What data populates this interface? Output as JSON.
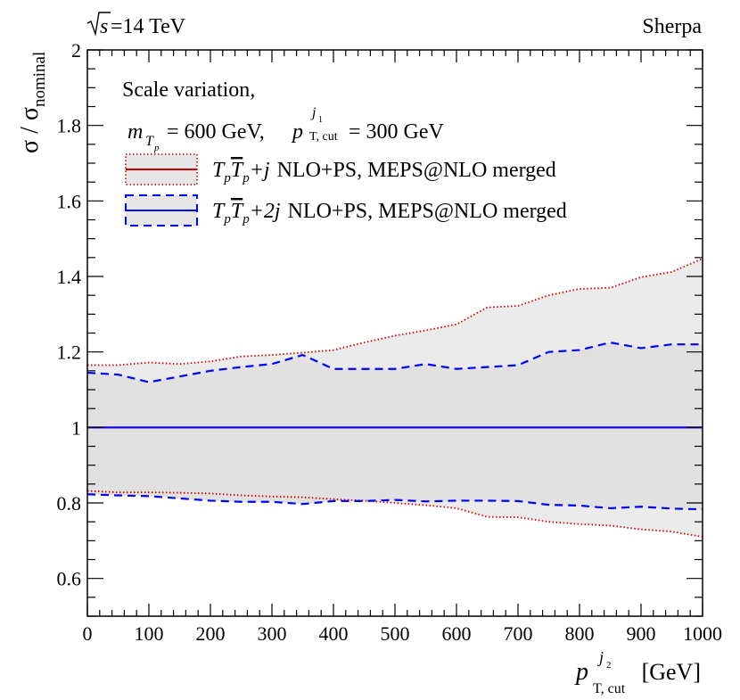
{
  "chart_data": {
    "type": "line",
    "header": {
      "energy_symbol": "s",
      "energy_label": "=14 TeV",
      "generator": "Sherpa"
    },
    "ylabel": {
      "main": "σ / σ",
      "sub": "nominal"
    },
    "xlabel": {
      "symbol": "p",
      "sup_main": "j",
      "sup_sub": "2",
      "sub": "T, cut",
      "unit": "[GeV]"
    },
    "xlim": [
      0,
      1000
    ],
    "ylim": [
      0.5,
      2.0
    ],
    "x_ticks": [
      "0",
      "100",
      "200",
      "300",
      "400",
      "500",
      "600",
      "700",
      "800",
      "900",
      "1000"
    ],
    "y_ticks": [
      {
        "value": 0.6,
        "label": "0.6"
      },
      {
        "value": 0.8,
        "label": "0.8"
      },
      {
        "value": 1.0,
        "label": "1"
      },
      {
        "value": 1.2,
        "label": "1.2"
      },
      {
        "value": 1.4,
        "label": "1.4"
      },
      {
        "value": 1.6,
        "label": "1.6"
      },
      {
        "value": 1.8,
        "label": "1.8"
      },
      {
        "value": 2.0,
        "label": "2"
      }
    ],
    "annotation": {
      "line1": "Scale variation,",
      "line2_m": "m",
      "line2_m_sub": "T",
      "line2_m_subsub": "p",
      "line2_mid": " = 600 GeV, ",
      "line2_p": "p",
      "line2_p_sup": "j",
      "line2_p_supsub": "1",
      "line2_p_sub": "T, cut",
      "line2_end": " = 300 GeV"
    },
    "legend": [
      {
        "T1": "T",
        "p1": "p",
        "T2": "T",
        "p2": "p",
        "jet": "+j",
        "text": "NLO+PS, MEPS@NLO merged"
      },
      {
        "T1": "T",
        "p1": "p",
        "T2": "T",
        "p2": "p",
        "jet": "+2j",
        "text": "NLO+PS, MEPS@NLO merged"
      }
    ],
    "x": [
      0,
      50,
      100,
      150,
      200,
      250,
      300,
      350,
      400,
      450,
      500,
      550,
      600,
      650,
      700,
      750,
      800,
      850,
      900,
      950,
      1000
    ],
    "series": [
      {
        "name": "TpTp+j NLO+PS, MEPS@NLO merged",
        "color": "#cc0000",
        "central": [
          1,
          1,
          1,
          1,
          1,
          1,
          1,
          1,
          1,
          1,
          1,
          1,
          1,
          1,
          1,
          1,
          1,
          1,
          1,
          1,
          1
        ],
        "upper": [
          1.165,
          1.165,
          1.172,
          1.168,
          1.175,
          1.188,
          1.192,
          1.198,
          1.205,
          1.225,
          1.243,
          1.257,
          1.273,
          1.318,
          1.322,
          1.35,
          1.367,
          1.37,
          1.398,
          1.412,
          1.447
        ],
        "lower": [
          0.832,
          0.828,
          0.828,
          0.827,
          0.825,
          0.82,
          0.817,
          0.815,
          0.81,
          0.806,
          0.8,
          0.794,
          0.786,
          0.763,
          0.762,
          0.75,
          0.744,
          0.74,
          0.73,
          0.724,
          0.71
        ]
      },
      {
        "name": "TpTp+2j NLO+PS, MEPS@NLO merged",
        "color": "#0000ff",
        "central": [
          1,
          1,
          1,
          1,
          1,
          1,
          1,
          1,
          1,
          1,
          1,
          1,
          1,
          1,
          1,
          1,
          1,
          1,
          1,
          1,
          1
        ],
        "upper": [
          1.145,
          1.14,
          1.12,
          1.135,
          1.15,
          1.16,
          1.168,
          1.192,
          1.155,
          1.155,
          1.155,
          1.168,
          1.155,
          1.16,
          1.165,
          1.2,
          1.205,
          1.225,
          1.21,
          1.22,
          1.22
        ],
        "lower": [
          0.823,
          0.82,
          0.818,
          0.812,
          0.806,
          0.803,
          0.803,
          0.797,
          0.805,
          0.805,
          0.808,
          0.804,
          0.806,
          0.806,
          0.805,
          0.795,
          0.793,
          0.786,
          0.79,
          0.785,
          0.783
        ]
      }
    ]
  }
}
